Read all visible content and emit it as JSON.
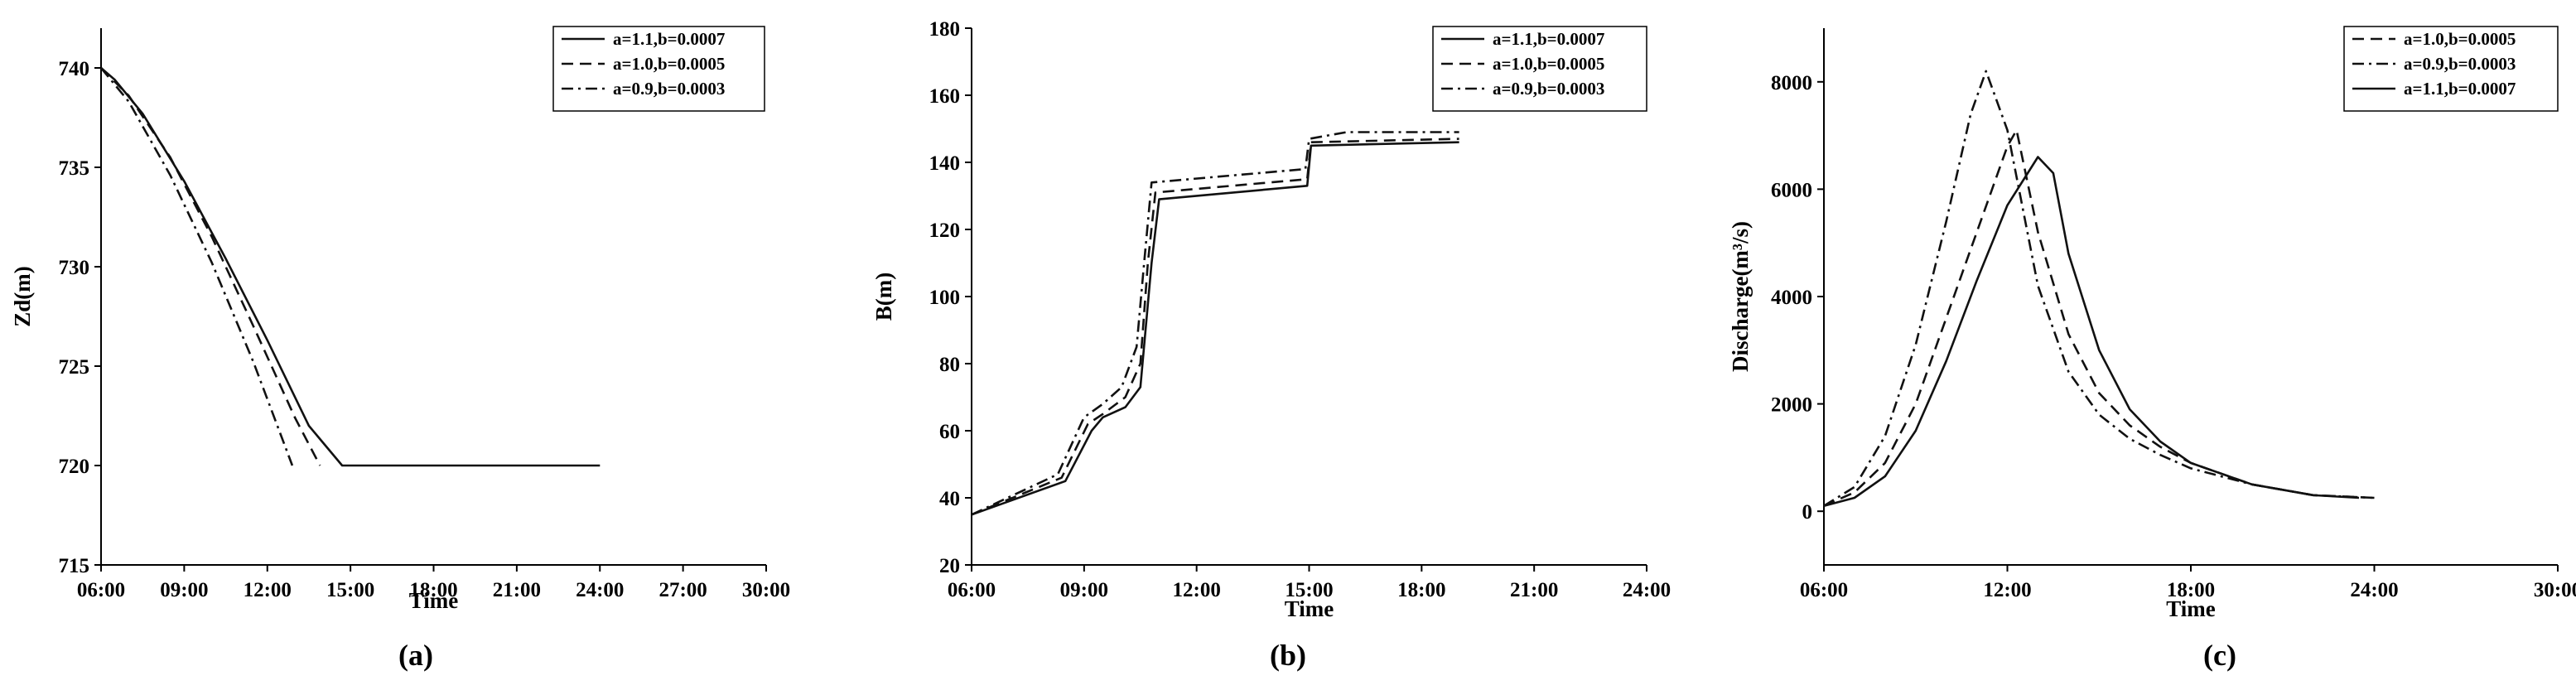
{
  "chart_data": [
    {
      "type": "line",
      "panel_label": "(a)",
      "xlabel": "Time",
      "ylabel": "Zd(m)",
      "xticks": [
        "06:00",
        "09:00",
        "12:00",
        "15:00",
        "18:00",
        "21:00",
        "24:00",
        "27:00",
        "30:00"
      ],
      "xlim": [
        6,
        30
      ],
      "yticks": [
        "715",
        "720",
        "725",
        "730",
        "735",
        "740"
      ],
      "ylim": [
        715,
        742
      ],
      "legend_position": "top-right",
      "series": [
        {
          "name": "a=1.1,b=0.0007",
          "style": "solid",
          "x": [
            6.0,
            6.5,
            7.5,
            9.0,
            10.5,
            12.0,
            13.5,
            14.7,
            24.0
          ],
          "y": [
            740.0,
            739.4,
            737.7,
            734.3,
            730.4,
            726.3,
            722.0,
            720.0,
            720.0
          ]
        },
        {
          "name": "a=1.0,b=0.0005",
          "style": "dashed",
          "x": [
            6.0,
            7.0,
            8.5,
            10.0,
            11.5,
            13.0,
            13.9
          ],
          "y": [
            740.0,
            738.6,
            735.5,
            731.5,
            727.0,
            722.4,
            720.0
          ]
        },
        {
          "name": "a=0.9,b=0.0003",
          "style": "dashdot",
          "x": [
            6.0,
            7.0,
            8.5,
            10.0,
            11.5,
            12.9
          ],
          "y": [
            740.0,
            738.3,
            734.6,
            730.2,
            725.2,
            720.0
          ]
        }
      ]
    },
    {
      "type": "line",
      "panel_label": "(b)",
      "xlabel": "Time",
      "ylabel": "B(m)",
      "xticks": [
        "06:00",
        "09:00",
        "12:00",
        "15:00",
        "18:00",
        "21:00",
        "24:00"
      ],
      "xlim": [
        6,
        24
      ],
      "yticks": [
        "20",
        "40",
        "60",
        "80",
        "100",
        "120",
        "140",
        "160",
        "180"
      ],
      "ylim": [
        20,
        180
      ],
      "legend_position": "top-right",
      "series": [
        {
          "name": "a=1.1,b=0.0007",
          "style": "solid",
          "x": [
            6.0,
            8.5,
            9.2,
            9.5,
            10.1,
            10.5,
            10.8,
            11.0,
            14.95,
            15.05,
            19.0
          ],
          "y": [
            35,
            45,
            60,
            64,
            67,
            73,
            110,
            129,
            133,
            145,
            146
          ]
        },
        {
          "name": "a=1.0,b=0.0005",
          "style": "dashed",
          "x": [
            6.0,
            8.4,
            9.1,
            9.5,
            10.1,
            10.5,
            10.7,
            10.9,
            14.95,
            15.05,
            19.0
          ],
          "y": [
            35,
            46,
            62,
            65,
            70,
            80,
            110,
            131,
            135,
            146,
            147
          ]
        },
        {
          "name": "a=0.9,b=0.0003",
          "style": "dashdot",
          "x": [
            6.0,
            8.3,
            9.0,
            9.5,
            10.0,
            10.4,
            10.6,
            10.8,
            14.9,
            15.0,
            16.0,
            19.0
          ],
          "y": [
            35,
            47,
            64,
            68,
            73,
            85,
            110,
            134,
            138,
            147,
            149,
            149
          ]
        }
      ]
    },
    {
      "type": "line",
      "panel_label": "(c)",
      "xlabel": "Time",
      "ylabel": "Discharge(m³/s)",
      "xticks": [
        "06:00",
        "12:00",
        "18:00",
        "24:00",
        "30:00"
      ],
      "xlim": [
        6,
        30
      ],
      "yticks": [
        "0",
        "2000",
        "4000",
        "6000",
        "8000"
      ],
      "ylim": [
        -1000,
        9000
      ],
      "legend_position": "top-right",
      "series": [
        {
          "name": "a=1.0,b=0.0005",
          "style": "dashed",
          "x": [
            6,
            7,
            8,
            9,
            10,
            11,
            12,
            12.3,
            13,
            14,
            15,
            16,
            17,
            18,
            20,
            22,
            24
          ],
          "y": [
            100,
            350,
            900,
            2000,
            3600,
            5200,
            6800,
            7100,
            5200,
            3300,
            2200,
            1600,
            1200,
            900,
            500,
            300,
            250
          ]
        },
        {
          "name": "a=0.9,b=0.0003",
          "style": "dashdot",
          "x": [
            6,
            7,
            8,
            9,
            10,
            10.8,
            11.3,
            12,
            13,
            14,
            15,
            16,
            17,
            18,
            20,
            22,
            24
          ],
          "y": [
            100,
            450,
            1400,
            3100,
            5400,
            7400,
            8200,
            7100,
            4200,
            2600,
            1800,
            1350,
            1050,
            800,
            500,
            300,
            250
          ]
        },
        {
          "name": "a=1.1,b=0.0007",
          "style": "solid",
          "x": [
            6,
            7,
            8,
            9,
            10,
            11,
            12,
            13,
            13.5,
            14,
            15,
            16,
            17,
            18,
            20,
            22,
            23.5
          ],
          "y": [
            100,
            250,
            650,
            1500,
            2800,
            4300,
            5700,
            6600,
            6300,
            4800,
            3000,
            1900,
            1300,
            900,
            500,
            300,
            250
          ]
        }
      ]
    }
  ]
}
